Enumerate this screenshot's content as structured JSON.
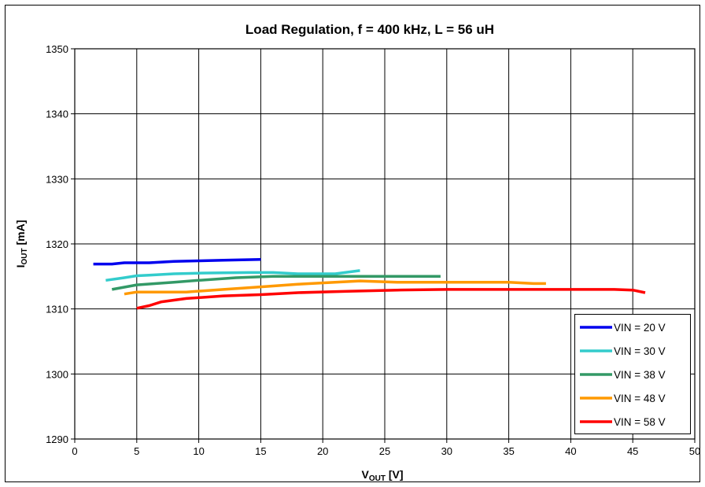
{
  "chart_data": {
    "type": "line",
    "title": "Load Regulation, f = 400 kHz, L = 56 uH",
    "xlabel": {
      "main": "V",
      "sub": "OUT",
      "rest": " [V]"
    },
    "ylabel": {
      "main": "I",
      "sub": "OUT",
      "rest": " [mA]"
    },
    "xlim": [
      0,
      50
    ],
    "ylim": [
      1290,
      1350
    ],
    "xticks": [
      0,
      5,
      10,
      15,
      20,
      25,
      30,
      35,
      40,
      45,
      50
    ],
    "yticks": [
      1290,
      1300,
      1310,
      1320,
      1330,
      1340,
      1350
    ],
    "grid": true,
    "legend_position": "bottom-right",
    "series": [
      {
        "name": "VIN = 20 V",
        "color": "#0000ee",
        "x": [
          1.5,
          3,
          4,
          6,
          8,
          10,
          12,
          15
        ],
        "y": [
          1316.9,
          1316.9,
          1317.1,
          1317.1,
          1317.3,
          1317.4,
          1317.5,
          1317.6
        ]
      },
      {
        "name": "VIN = 30 V",
        "color": "#33cccc",
        "x": [
          2.5,
          4,
          5,
          6,
          8,
          10,
          14,
          16,
          18,
          21,
          23
        ],
        "y": [
          1314.4,
          1314.8,
          1315.1,
          1315.2,
          1315.4,
          1315.5,
          1315.6,
          1315.6,
          1315.4,
          1315.4,
          1315.9
        ]
      },
      {
        "name": "VIN = 38 V",
        "color": "#339966",
        "x": [
          3,
          5,
          8,
          10,
          13,
          16,
          20,
          25,
          29.5
        ],
        "y": [
          1313,
          1313.7,
          1314.1,
          1314.4,
          1314.8,
          1315,
          1315,
          1315,
          1315
        ]
      },
      {
        "name": "VIN = 48 V",
        "color": "#ff9900",
        "x": [
          4,
          5,
          9,
          12,
          15,
          18,
          21,
          23,
          26,
          30,
          35,
          37,
          38
        ],
        "y": [
          1312.3,
          1312.6,
          1312.6,
          1313,
          1313.4,
          1313.8,
          1314.1,
          1314.3,
          1314.1,
          1314.1,
          1314.1,
          1313.9,
          1313.9
        ]
      },
      {
        "name": "VIN = 58 V",
        "color": "#ff0000",
        "x": [
          5,
          6,
          7,
          9,
          12,
          15,
          18,
          22,
          26,
          30,
          35,
          40,
          43.5,
          45,
          46
        ],
        "y": [
          1310.1,
          1310.5,
          1311.1,
          1311.6,
          1312,
          1312.2,
          1312.5,
          1312.7,
          1312.9,
          1313,
          1313,
          1313,
          1313,
          1312.9,
          1312.5
        ]
      }
    ]
  }
}
